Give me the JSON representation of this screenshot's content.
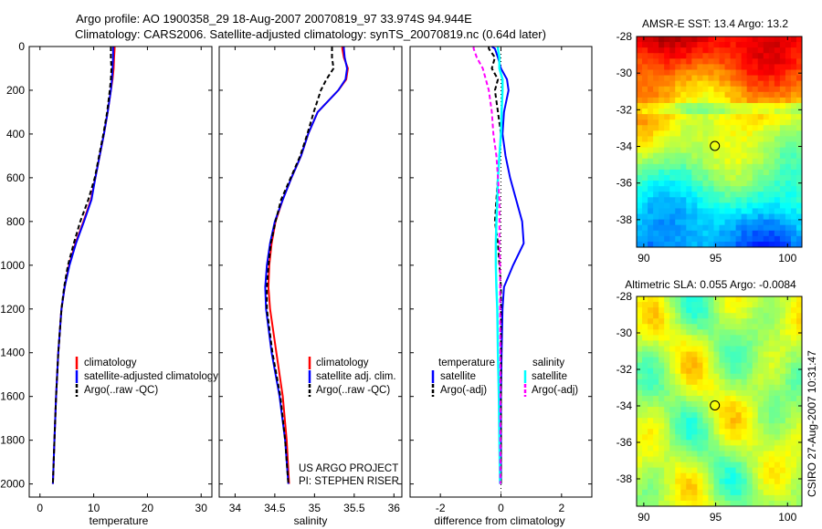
{
  "figure": {
    "title_line1": "Argo profile: AO 1900358_29 18-Aug-2007 20070819_97 33.974S 94.944E",
    "title_line2": "Climatology: CARS2006. Satellite-adjusted climatology: synTS_20070819.nc (0.64d later)",
    "credit_line1": "US ARGO PROJECT",
    "credit_line2": "PI: STEPHEN RISER",
    "side_stamp": "CSIRO 27-Aug-2007 10:31:47"
  },
  "colors": {
    "climatology": "#ff0000",
    "satellite": "#0000ff",
    "argo": "#000000",
    "salinity_satellite": "#00ffff",
    "salinity_argo": "#ff00ff"
  },
  "chart_data": [
    {
      "type": "line",
      "id": "temperature",
      "xlabel": "temperature",
      "ylabel": "",
      "xlim": [
        -2,
        32
      ],
      "ylim": [
        2060,
        0
      ],
      "xticks": [
        "0",
        "10",
        "20",
        "30"
      ],
      "yticks": [
        "0",
        "200",
        "400",
        "600",
        "800",
        "1000",
        "1200",
        "1400",
        "1600",
        "1800",
        "2000"
      ],
      "legend": [
        "climatology",
        "satellite-adjusted climatology",
        "Argo(..raw -QC)"
      ],
      "depth": [
        0,
        10,
        50,
        100,
        150,
        200,
        300,
        400,
        500,
        600,
        700,
        800,
        900,
        1000,
        1100,
        1200,
        1400,
        1600,
        1800,
        2000
      ],
      "series": [
        {
          "name": "climatology",
          "values": [
            13.9,
            13.9,
            13.8,
            13.7,
            13.5,
            13.2,
            12.6,
            11.9,
            11.1,
            10.3,
            9.5,
            8.1,
            6.6,
            5.4,
            4.6,
            4.0,
            3.4,
            3.0,
            2.7,
            2.4
          ]
        },
        {
          "name": "satellite-adjusted climatology",
          "values": [
            13.6,
            13.6,
            13.6,
            13.5,
            13.4,
            13.2,
            12.6,
            11.9,
            11.1,
            10.3,
            9.6,
            8.2,
            6.7,
            5.5,
            4.6,
            4.0,
            3.4,
            3.0,
            2.7,
            2.4
          ]
        },
        {
          "name": "Argo(..raw -QC)",
          "values": [
            13.2,
            13.2,
            13.2,
            13.3,
            13.2,
            13.0,
            12.5,
            11.8,
            11.0,
            10.2,
            9.0,
            7.5,
            6.3,
            5.2,
            4.5,
            4.0,
            3.4,
            3.0,
            2.7,
            2.4
          ]
        }
      ]
    },
    {
      "type": "line",
      "id": "salinity",
      "xlabel": "salinity",
      "ylabel": "",
      "xlim": [
        33.8,
        36.1
      ],
      "ylim": [
        2060,
        0
      ],
      "xticks": [
        "34",
        "34.5",
        "35",
        "35.5",
        "36"
      ],
      "legend": [
        "climatology",
        "satellite adj. clim.",
        "Argo(..raw -QC)"
      ],
      "depth": [
        0,
        10,
        50,
        100,
        150,
        200,
        300,
        400,
        500,
        600,
        700,
        800,
        900,
        1000,
        1100,
        1200,
        1400,
        1600,
        1800,
        2000
      ],
      "series": [
        {
          "name": "climatology",
          "values": [
            35.35,
            35.35,
            35.37,
            35.42,
            35.4,
            35.3,
            35.04,
            34.92,
            34.83,
            34.71,
            34.6,
            34.51,
            34.46,
            34.43,
            34.42,
            34.44,
            34.52,
            34.6,
            34.65,
            34.68
          ]
        },
        {
          "name": "satellite adj. clim.",
          "values": [
            35.37,
            35.37,
            35.38,
            35.41,
            35.39,
            35.3,
            35.04,
            34.92,
            34.83,
            34.71,
            34.6,
            34.5,
            34.44,
            34.4,
            34.38,
            34.39,
            34.46,
            34.56,
            34.63,
            34.67
          ]
        },
        {
          "name": "Argo(..raw -QC)",
          "values": [
            35.22,
            35.22,
            35.22,
            35.24,
            35.15,
            35.08,
            34.99,
            34.91,
            34.82,
            34.7,
            34.58,
            34.51,
            34.45,
            34.42,
            34.4,
            34.4,
            34.47,
            34.57,
            34.63,
            34.67
          ]
        }
      ]
    },
    {
      "type": "line",
      "id": "difference",
      "xlabel": "difference from climatology",
      "ylabel": "",
      "xlim": [
        -3,
        3
      ],
      "ylim": [
        2060,
        0
      ],
      "xticks": [
        "-2",
        "0",
        "2"
      ],
      "legend_temperature_header": "temperature",
      "legend_salinity_header": "salinity",
      "legend": [
        "satellite",
        "Argo(-adj)",
        "satellite",
        "Argo(-adj)"
      ],
      "depth": [
        0,
        10,
        50,
        100,
        150,
        200,
        300,
        400,
        500,
        600,
        700,
        800,
        900,
        1000,
        1100,
        1200,
        1400,
        1600,
        1800,
        2000
      ],
      "series": [
        {
          "name": "temperature satellite",
          "values": [
            -0.3,
            -0.2,
            -0.1,
            0.0,
            0.2,
            0.25,
            0.1,
            0.05,
            0.15,
            0.3,
            0.5,
            0.7,
            0.75,
            0.4,
            0.1,
            0.05,
            0.02,
            0.0,
            0.0,
            0.0
          ]
        },
        {
          "name": "temperature Argo(-adj)",
          "values": [
            -0.4,
            -0.4,
            -0.2,
            -0.3,
            -0.1,
            -0.2,
            -0.1,
            0.0,
            -0.05,
            -0.1,
            -0.15,
            -0.2,
            -0.1,
            -0.05,
            0.0,
            0.0,
            0.0,
            0.0,
            0.0,
            0.0
          ]
        },
        {
          "name": "salinity satellite",
          "values": [
            -0.1,
            -0.1,
            -0.05,
            -0.05,
            0.05,
            0.05,
            0.02,
            0.0,
            -0.05,
            -0.1,
            -0.12,
            -0.15,
            -0.17,
            -0.17,
            -0.15,
            -0.12,
            -0.1,
            -0.07,
            -0.05,
            -0.03
          ]
        },
        {
          "name": "salinity Argo(-adj)",
          "values": [
            -0.9,
            -0.9,
            -0.8,
            -0.6,
            -0.5,
            -0.4,
            -0.3,
            -0.25,
            -0.15,
            -0.1,
            -0.05,
            -0.05,
            -0.05,
            -0.03,
            -0.03,
            -0.03,
            -0.02,
            -0.02,
            -0.02,
            -0.02
          ]
        }
      ]
    },
    {
      "type": "heatmap",
      "id": "sst-map",
      "title": "AMSR-E SST: 13.4 Argo: 13.2",
      "xlim": [
        89.5,
        101
      ],
      "ylim": [
        -39.5,
        -28
      ],
      "xticks": [
        "90",
        "95",
        "100"
      ],
      "yticks": [
        "-28",
        "-30",
        "-32",
        "-34",
        "-36",
        "-38"
      ],
      "marker": {
        "lon": 94.944,
        "lat": -33.974
      }
    },
    {
      "type": "heatmap",
      "id": "sla-map",
      "title": "Altimetric SLA: 0.055 Argo: -0.0084",
      "xlim": [
        89.5,
        101
      ],
      "ylim": [
        -39.5,
        -28
      ],
      "xticks": [
        "90",
        "95",
        "100"
      ],
      "yticks": [
        "-28",
        "-30",
        "-32",
        "-34",
        "-36",
        "-38"
      ],
      "marker": {
        "lon": 94.944,
        "lat": -33.974
      }
    }
  ]
}
